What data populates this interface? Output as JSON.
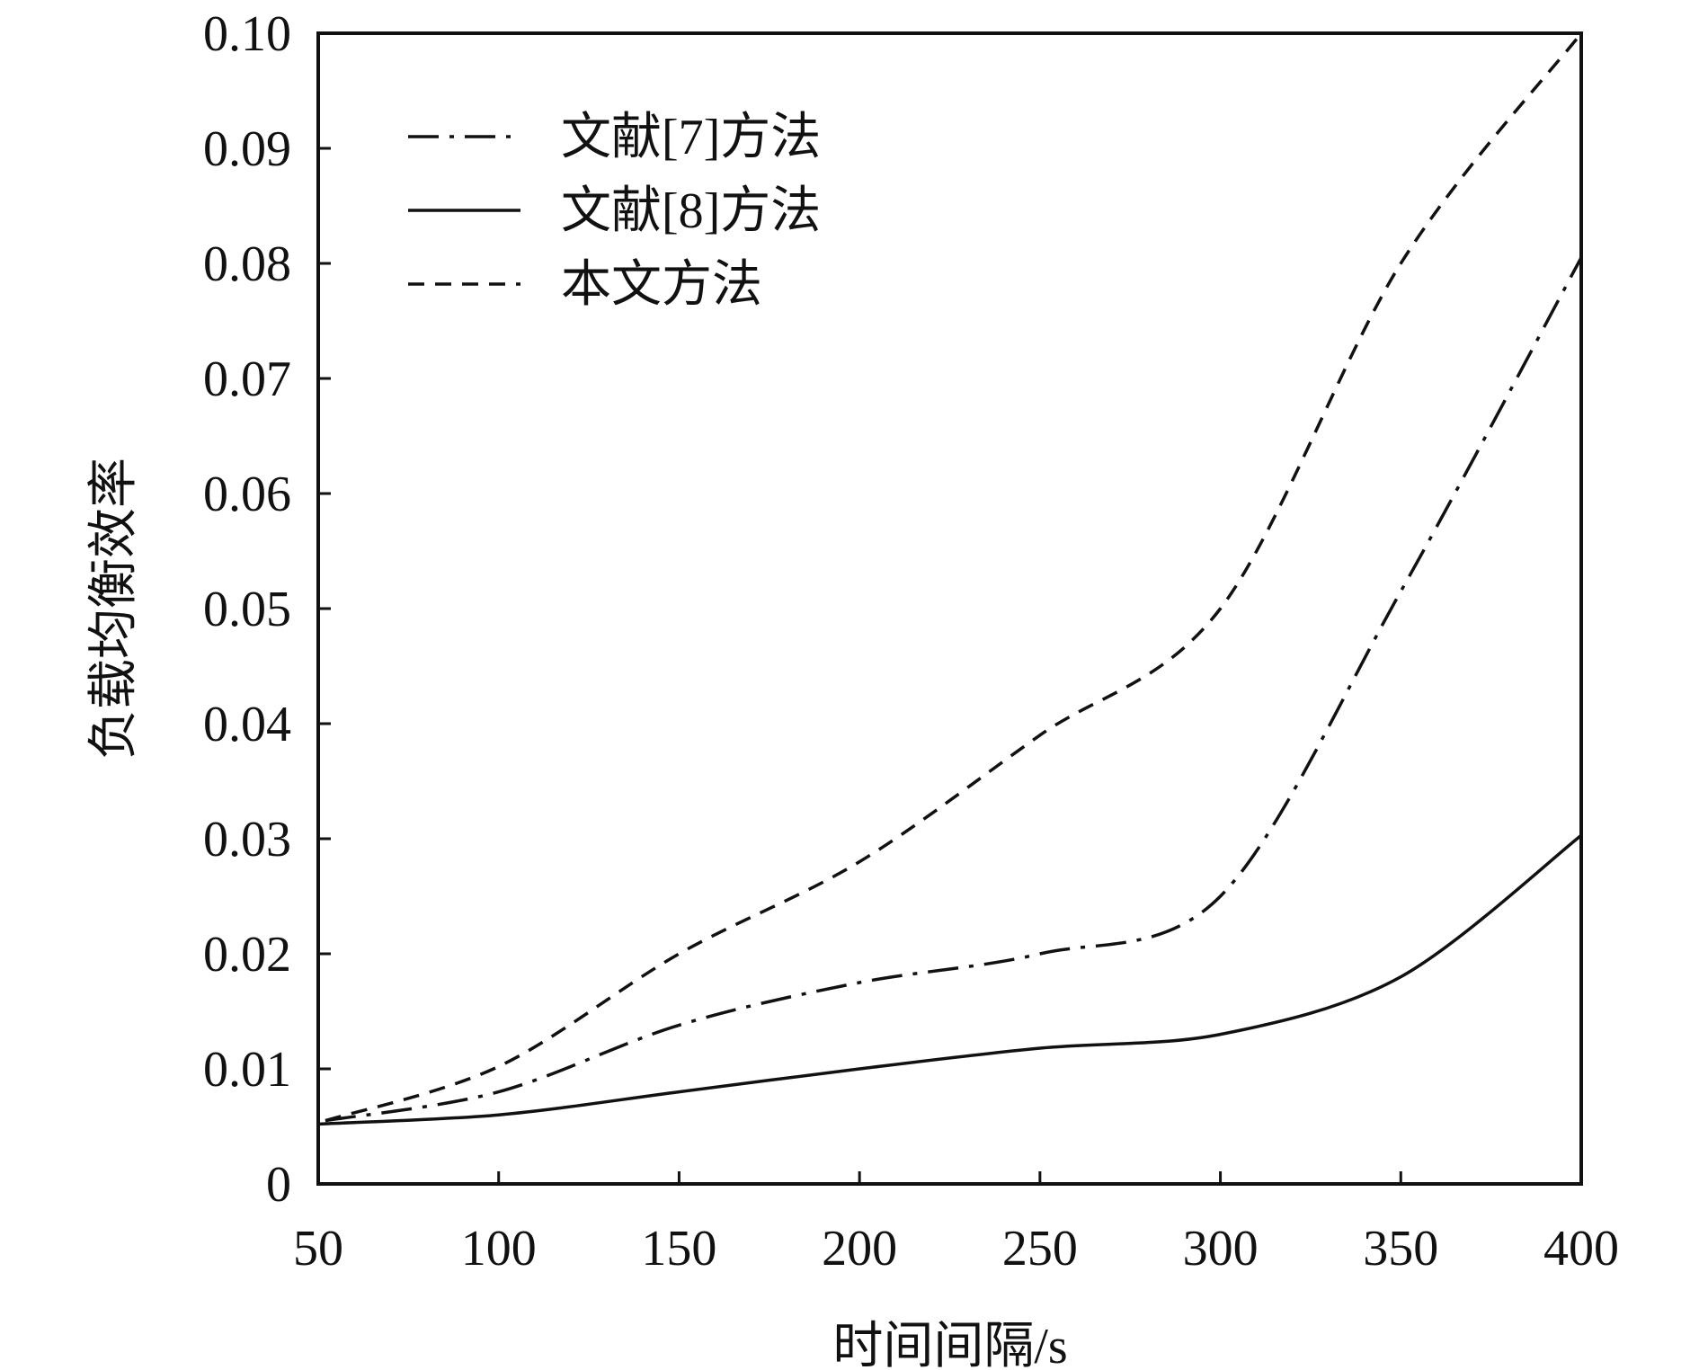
{
  "chart_data": {
    "type": "line",
    "title": "",
    "xlabel": "时间间隔/s",
    "ylabel": "负载均衡效率",
    "xlim": [
      50,
      400
    ],
    "ylim": [
      0,
      0.1
    ],
    "xticks": [
      50,
      100,
      150,
      200,
      250,
      300,
      350,
      400
    ],
    "xtick_labels": [
      "50",
      "100",
      "150",
      "200",
      "250",
      "300",
      "350",
      "400"
    ],
    "yticks": [
      0,
      0.01,
      0.02,
      0.03,
      0.04,
      0.05,
      0.06,
      0.07,
      0.08,
      0.09,
      0.1
    ],
    "ytick_labels": [
      "0",
      "0.01",
      "0.02",
      "0.03",
      "0.04",
      "0.05",
      "0.06",
      "0.07",
      "0.08",
      "0.09",
      "0.10"
    ],
    "legend_position": "top-left",
    "series": [
      {
        "name": "文献[7]方法",
        "style": "dashdot",
        "x": [
          52,
          100,
          150,
          200,
          250,
          300,
          350,
          400
        ],
        "y": [
          0.0055,
          0.008,
          0.0138,
          0.0175,
          0.02,
          0.025,
          0.0515,
          0.0805
        ]
      },
      {
        "name": "文献[8]方法",
        "style": "solid",
        "x": [
          50,
          100,
          150,
          200,
          250,
          300,
          350,
          400
        ],
        "y": [
          0.0052,
          0.006,
          0.008,
          0.01,
          0.0118,
          0.013,
          0.018,
          0.0303
        ]
      },
      {
        "name": "本文方法",
        "style": "dashed",
        "x": [
          52,
          100,
          150,
          200,
          250,
          300,
          350,
          400
        ],
        "y": [
          0.0055,
          0.0102,
          0.02,
          0.028,
          0.039,
          0.05,
          0.08,
          0.1
        ]
      }
    ]
  }
}
